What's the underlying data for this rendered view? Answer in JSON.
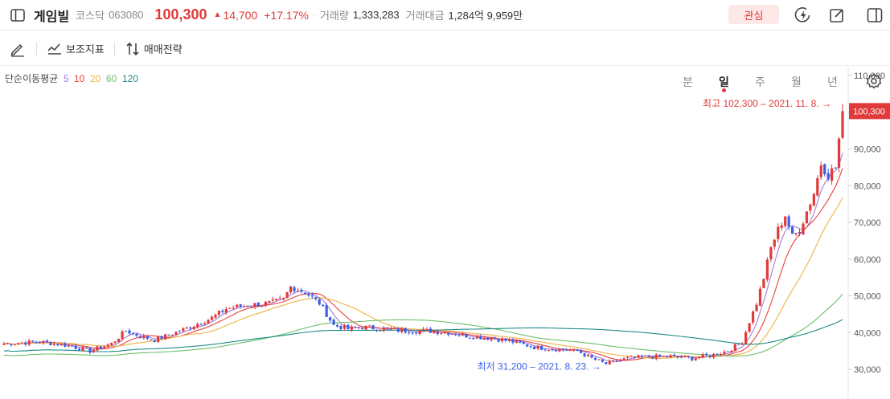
{
  "header": {
    "name": "게임빌",
    "market": "코스닥",
    "code": "063080",
    "price": "100,300",
    "change_arrow": "▲",
    "change": "14,700",
    "change_pct": "+17.17%",
    "volume_label": "거래량",
    "volume": "1,333,283",
    "amount_label": "거래대금",
    "amount": "1,284억 9,959만",
    "fav_label": "관심"
  },
  "toolbar": {
    "indicator_label": "보조지표",
    "strategy_label": "매매전략"
  },
  "periods": [
    {
      "label": "분"
    },
    {
      "label": "일"
    },
    {
      "label": "주"
    },
    {
      "label": "월"
    },
    {
      "label": "년"
    }
  ],
  "selected_period": "일",
  "colors": {
    "up": "#e03a3a",
    "down": "#3c5ee6",
    "ma5": "#a57bd8",
    "ma10": "#e8403a",
    "ma20": "#f0b241",
    "ma60": "#6bbf6b",
    "ma120": "#1e8a86"
  },
  "chart_data": {
    "type": "candlestick",
    "legend_title": "단순이동평균",
    "ma_periods": [
      "5",
      "10",
      "20",
      "60",
      "120"
    ],
    "yticks": [
      "110,000",
      "100,000",
      "90,000",
      "80,000",
      "70,000",
      "60,000",
      "50,000",
      "40,000",
      "30,000"
    ],
    "ylim": [
      30000,
      110000
    ],
    "current_price_label": "100,300",
    "high_annotation": "최고 102,300 – 2021. 11. 8.",
    "low_annotation": "최저 31,200 – 2021. 8. 23.",
    "high": 102300,
    "low": 31200,
    "last": 100300,
    "ma_end": {
      "ma5": 88000,
      "ma10": 81000,
      "ma20": 72000,
      "ma60": 47500,
      "ma120": 43000
    },
    "control_points": [
      [
        0,
        37000
      ],
      [
        10,
        37500
      ],
      [
        18,
        36500
      ],
      [
        24,
        35000
      ],
      [
        30,
        37000
      ],
      [
        34,
        40500
      ],
      [
        38,
        39000
      ],
      [
        42,
        38000
      ],
      [
        48,
        40000
      ],
      [
        53,
        42000
      ],
      [
        58,
        44000
      ],
      [
        62,
        46500
      ],
      [
        68,
        47500
      ],
      [
        74,
        48000
      ],
      [
        78,
        49000
      ],
      [
        80,
        52500
      ],
      [
        84,
        51000
      ],
      [
        88,
        48000
      ],
      [
        92,
        42000
      ],
      [
        96,
        41000
      ],
      [
        100,
        41500
      ],
      [
        106,
        41000
      ],
      [
        112,
        40500
      ],
      [
        118,
        40500
      ],
      [
        124,
        40000
      ],
      [
        130,
        39000
      ],
      [
        136,
        38500
      ],
      [
        142,
        37500
      ],
      [
        148,
        36000
      ],
      [
        154,
        35500
      ],
      [
        160,
        35000
      ],
      [
        164,
        33000
      ],
      [
        168,
        31500
      ],
      [
        174,
        33000
      ],
      [
        180,
        33500
      ],
      [
        186,
        33500
      ],
      [
        192,
        33000
      ],
      [
        198,
        34000
      ],
      [
        202,
        35000
      ],
      [
        206,
        37500
      ],
      [
        208,
        43000
      ],
      [
        210,
        48000
      ],
      [
        212,
        55000
      ],
      [
        214,
        63000
      ],
      [
        216,
        68000
      ],
      [
        218,
        72000
      ],
      [
        220,
        66000
      ],
      [
        222,
        68000
      ],
      [
        224,
        73000
      ],
      [
        226,
        78000
      ],
      [
        228,
        86000
      ],
      [
        230,
        83000
      ],
      [
        232,
        85000
      ],
      [
        234,
        100300
      ]
    ]
  }
}
